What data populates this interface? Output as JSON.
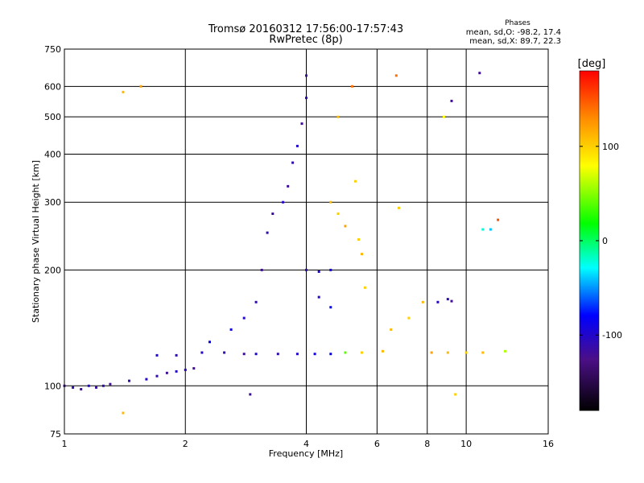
{
  "chart_data": {
    "type": "scatter",
    "title": "Tromsø 20160312 17:56:00-17:57:43",
    "subtitle": "RwPretec (8p)",
    "xlabel": "Frequency [MHz]",
    "ylabel": "Stationary phase Virtual Height [km]",
    "x_scale": "log",
    "y_scale": "log",
    "xlim": [
      1,
      16
    ],
    "ylim": [
      75,
      750
    ],
    "x_ticks": [
      1,
      2,
      4,
      6,
      8,
      10,
      16
    ],
    "x_tick_labels": [
      "1",
      "2",
      "4",
      "6",
      "8",
      "10",
      "16"
    ],
    "y_ticks": [
      75,
      100,
      200,
      300,
      400,
      500,
      600,
      750
    ],
    "y_tick_labels": [
      "75",
      "100",
      "200",
      "300",
      "400",
      "500",
      "600",
      "750"
    ],
    "grid": true,
    "stats": {
      "heading": "Phases",
      "line_o": "mean, sd,O: -98.2, 17.4",
      "line_x": "mean, sd,X:  89.7, 22.3"
    },
    "colorbar": {
      "label": "[deg]",
      "range": [
        -180,
        180
      ],
      "ticks": [
        100,
        0,
        -100
      ],
      "tick_labels": [
        "100",
        "0",
        "-100"
      ],
      "placement": "right"
    },
    "series": [
      {
        "values": [
          {
            "x": 1.0,
            "y": 100,
            "c": -120
          },
          {
            "x": 1.05,
            "y": 99,
            "c": -110
          },
          {
            "x": 1.1,
            "y": 98,
            "c": -120
          },
          {
            "x": 1.15,
            "y": 100,
            "c": -100
          },
          {
            "x": 1.2,
            "y": 99,
            "c": -115
          },
          {
            "x": 1.25,
            "y": 100,
            "c": -110
          },
          {
            "x": 1.3,
            "y": 101,
            "c": -120
          },
          {
            "x": 1.45,
            "y": 103,
            "c": -110
          },
          {
            "x": 1.6,
            "y": 104,
            "c": -100
          },
          {
            "x": 1.7,
            "y": 106,
            "c": -110
          },
          {
            "x": 1.8,
            "y": 108,
            "c": -120
          },
          {
            "x": 1.9,
            "y": 109,
            "c": -100
          },
          {
            "x": 2.0,
            "y": 110,
            "c": -110
          },
          {
            "x": 2.1,
            "y": 111,
            "c": -120
          },
          {
            "x": 1.7,
            "y": 120,
            "c": -100
          },
          {
            "x": 1.9,
            "y": 120,
            "c": -110
          },
          {
            "x": 2.2,
            "y": 122,
            "c": -100
          },
          {
            "x": 2.5,
            "y": 122,
            "c": -110
          },
          {
            "x": 2.8,
            "y": 121,
            "c": -120
          },
          {
            "x": 3.0,
            "y": 121,
            "c": -100
          },
          {
            "x": 3.4,
            "y": 121,
            "c": -110
          },
          {
            "x": 3.8,
            "y": 121,
            "c": -100
          },
          {
            "x": 4.2,
            "y": 121,
            "c": -90
          },
          {
            "x": 4.6,
            "y": 121,
            "c": -80
          },
          {
            "x": 5.0,
            "y": 122,
            "c": 40
          },
          {
            "x": 5.5,
            "y": 122,
            "c": 100
          },
          {
            "x": 6.2,
            "y": 123,
            "c": 110
          },
          {
            "x": 2.3,
            "y": 130,
            "c": -80
          },
          {
            "x": 2.6,
            "y": 140,
            "c": -90
          },
          {
            "x": 2.8,
            "y": 150,
            "c": -100
          },
          {
            "x": 3.0,
            "y": 165,
            "c": -110
          },
          {
            "x": 3.1,
            "y": 200,
            "c": -120
          },
          {
            "x": 3.2,
            "y": 250,
            "c": -110
          },
          {
            "x": 3.3,
            "y": 280,
            "c": -120
          },
          {
            "x": 3.5,
            "y": 300,
            "c": -100
          },
          {
            "x": 3.6,
            "y": 330,
            "c": -120
          },
          {
            "x": 3.7,
            "y": 380,
            "c": -110
          },
          {
            "x": 3.8,
            "y": 420,
            "c": -100
          },
          {
            "x": 3.9,
            "y": 480,
            "c": -120
          },
          {
            "x": 4.0,
            "y": 560,
            "c": -110
          },
          {
            "x": 4.0,
            "y": 640,
            "c": -120
          },
          {
            "x": 4.0,
            "y": 200,
            "c": -110
          },
          {
            "x": 4.3,
            "y": 198,
            "c": -100
          },
          {
            "x": 4.6,
            "y": 200,
            "c": -90
          },
          {
            "x": 4.3,
            "y": 170,
            "c": -100
          },
          {
            "x": 4.6,
            "y": 160,
            "c": -80
          },
          {
            "x": 4.6,
            "y": 300,
            "c": 110
          },
          {
            "x": 4.8,
            "y": 280,
            "c": 100
          },
          {
            "x": 5.0,
            "y": 260,
            "c": 120
          },
          {
            "x": 5.4,
            "y": 240,
            "c": 100
          },
          {
            "x": 5.5,
            "y": 220,
            "c": 110
          },
          {
            "x": 5.3,
            "y": 340,
            "c": 100
          },
          {
            "x": 4.8,
            "y": 500,
            "c": 110
          },
          {
            "x": 5.2,
            "y": 600,
            "c": 140
          },
          {
            "x": 5.6,
            "y": 180,
            "c": 100
          },
          {
            "x": 6.5,
            "y": 140,
            "c": 110
          },
          {
            "x": 7.2,
            "y": 150,
            "c": 100
          },
          {
            "x": 7.8,
            "y": 165,
            "c": 110
          },
          {
            "x": 8.5,
            "y": 165,
            "c": -100
          },
          {
            "x": 9.0,
            "y": 168,
            "c": -110
          },
          {
            "x": 9.2,
            "y": 166,
            "c": -120
          },
          {
            "x": 8.2,
            "y": 122,
            "c": 120
          },
          {
            "x": 9.0,
            "y": 122,
            "c": 110
          },
          {
            "x": 10.0,
            "y": 122,
            "c": 100
          },
          {
            "x": 11.0,
            "y": 122,
            "c": 110
          },
          {
            "x": 12.5,
            "y": 123,
            "c": 60
          },
          {
            "x": 11.0,
            "y": 255,
            "c": -20
          },
          {
            "x": 11.5,
            "y": 255,
            "c": -40
          },
          {
            "x": 9.2,
            "y": 550,
            "c": -120
          },
          {
            "x": 10.8,
            "y": 650,
            "c": -120
          },
          {
            "x": 8.8,
            "y": 500,
            "c": 80
          },
          {
            "x": 1.4,
            "y": 580,
            "c": 110
          },
          {
            "x": 1.55,
            "y": 600,
            "c": 120
          },
          {
            "x": 6.7,
            "y": 640,
            "c": 140
          },
          {
            "x": 6.8,
            "y": 290,
            "c": 100
          },
          {
            "x": 12.0,
            "y": 270,
            "c": 150
          },
          {
            "x": 1.4,
            "y": 85,
            "c": 110
          },
          {
            "x": 2.9,
            "y": 95,
            "c": -120
          },
          {
            "x": 9.4,
            "y": 95,
            "c": 100
          }
        ]
      }
    ]
  }
}
